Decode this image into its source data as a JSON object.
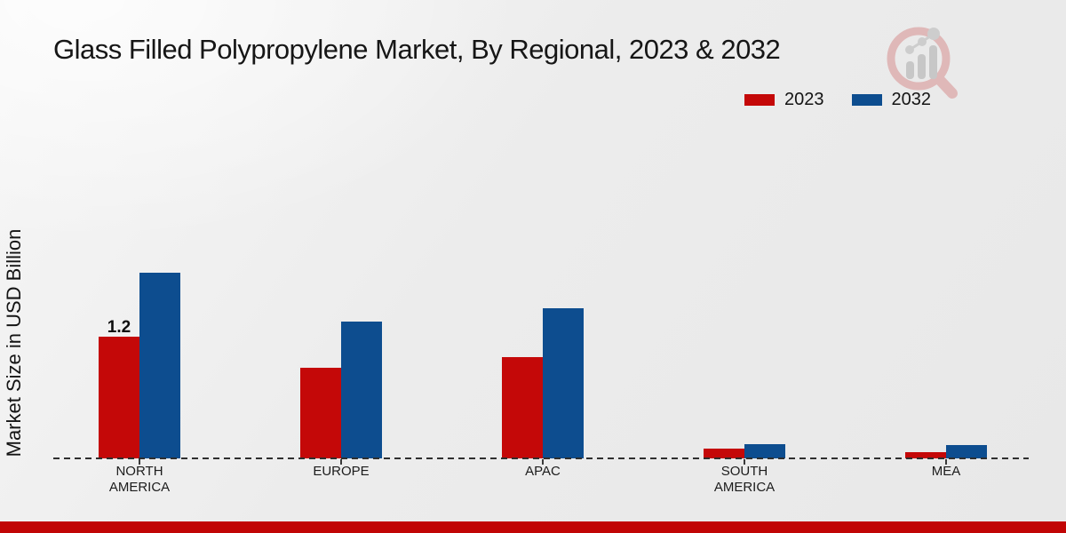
{
  "title": "Glass Filled Polypropylene Market, By Regional, 2023 & 2032",
  "legend": [
    {
      "label": "2023",
      "color": "#c40808"
    },
    {
      "label": "2032",
      "color": "#0d4d8f"
    }
  ],
  "colors": {
    "accent_red": "#c40808",
    "accent_blue": "#0d4d8f",
    "footer_red": "#c10505",
    "axis": "#2f2f2f"
  },
  "chart_data": {
    "type": "bar",
    "title": "Glass Filled Polypropylene Market, By Regional, 2023 & 2032",
    "ylabel": "Market Size in USD Billion",
    "xlabel": "",
    "units": "USD Billion",
    "categories": [
      "NORTH AMERICA",
      "EUROPE",
      "APAC",
      "SOUTH AMERICA",
      "MEA"
    ],
    "category_lines": [
      [
        "NORTH",
        "AMERICA"
      ],
      [
        "EUROPE"
      ],
      [
        "APAC"
      ],
      [
        "SOUTH",
        "AMERICA"
      ],
      [
        "MEA"
      ]
    ],
    "series": [
      {
        "name": "2023",
        "color": "#c40808",
        "values": [
          1.2,
          0.9,
          1.0,
          0.1,
          0.06
        ]
      },
      {
        "name": "2032",
        "color": "#0d4d8f",
        "values": [
          1.84,
          1.35,
          1.49,
          0.14,
          0.13
        ]
      }
    ],
    "ylim": [
      0,
      2
    ],
    "grid": false,
    "y_axis_ticks_visible": false,
    "legend_position": "top-right",
    "data_labels": [
      {
        "series_index": 0,
        "category_index": 0,
        "text": "1.2"
      }
    ]
  },
  "logo": {
    "name": "market-research-magnifier-logo"
  }
}
